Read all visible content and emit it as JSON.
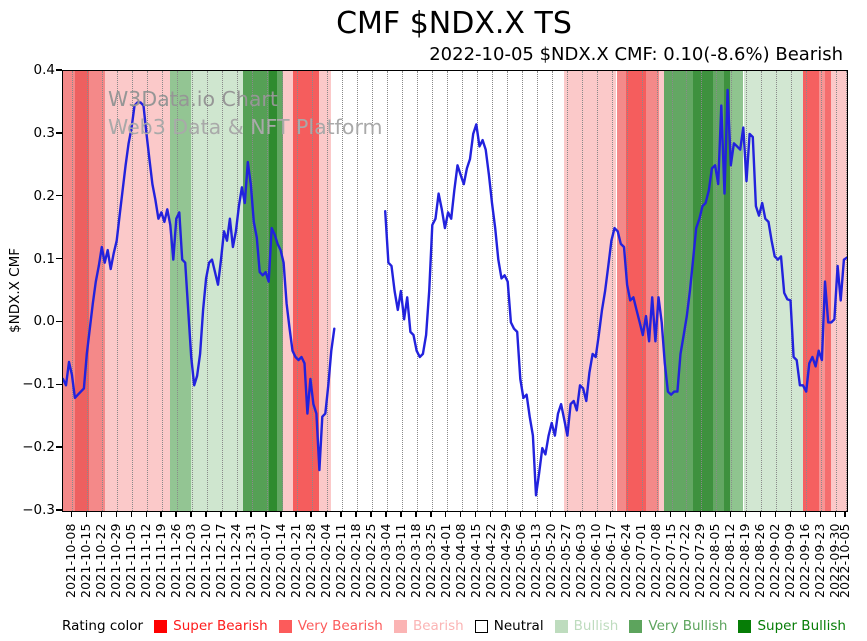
{
  "header": {
    "title": "CMF $NDX.X TS",
    "subtitle": "2022-10-05 $NDX.X CMF: 0.10(-8.6%) Bearish"
  },
  "watermark": {
    "line1": "W3Data.io Chart",
    "line2": "Web3 Data & NFT Platform"
  },
  "legend": {
    "label": "Rating color",
    "items": [
      {
        "label": "Super Bearish",
        "color": "#fe0000",
        "text_color": "#fe1a1a",
        "border": "none"
      },
      {
        "label": "Very Bearish",
        "color": "#fc5b5b",
        "text_color": "#fc5b5b",
        "border": "none"
      },
      {
        "label": "Bearish",
        "color": "#fbb4b4",
        "text_color": "#fbb4b4",
        "border": "none"
      },
      {
        "label": "Neutral",
        "color": "#ffffff",
        "text_color": "#000000",
        "border": "#000000"
      },
      {
        "label": "Bullish",
        "color": "#bedcbe",
        "text_color": "#bedcbe",
        "border": "none"
      },
      {
        "label": "Very Bullish",
        "color": "#5da45d",
        "text_color": "#5da45d",
        "border": "none"
      },
      {
        "label": "Super Bullish",
        "color": "#067d06",
        "text_color": "#067d06",
        "border": "none"
      }
    ]
  },
  "chart_data": {
    "type": "line",
    "title": "CMF $NDX.X TS",
    "ylabel": "$NDX.X CMF",
    "ylim": [
      -0.3,
      0.4
    ],
    "grid": "vertical-dotted",
    "line_color": "#2222dd",
    "yticks": [
      {
        "v": 0.4,
        "label": "0.4"
      },
      {
        "v": 0.3,
        "label": "0.3"
      },
      {
        "v": 0.2,
        "label": "0.2"
      },
      {
        "v": 0.1,
        "label": "0.1"
      },
      {
        "v": 0.0,
        "label": "0.0"
      },
      {
        "v": -0.1,
        "label": "−0.1"
      },
      {
        "v": -0.2,
        "label": "−0.2"
      },
      {
        "v": -0.3,
        "label": "−0.3"
      }
    ],
    "xticklabels": [
      "2021-10-08",
      "2021-10-15",
      "2021-10-22",
      "2021-10-29",
      "2021-11-05",
      "2021-11-12",
      "2021-11-19",
      "2021-11-26",
      "2021-12-03",
      "2021-12-10",
      "2021-12-17",
      "2021-12-24",
      "2021-12-31",
      "2022-01-07",
      "2022-01-14",
      "2022-01-21",
      "2022-01-28",
      "2022-02-04",
      "2022-02-11",
      "2022-02-18",
      "2022-02-25",
      "2022-03-04",
      "2022-03-11",
      "2022-03-18",
      "2022-03-25",
      "2022-04-01",
      "2022-04-08",
      "2022-04-15",
      "2022-04-22",
      "2022-04-29",
      "2022-05-06",
      "2022-05-13",
      "2022-05-20",
      "2022-05-27",
      "2022-06-03",
      "2022-06-10",
      "2022-06-17",
      "2022-06-24",
      "2022-07-01",
      "2022-07-08",
      "2022-07-15",
      "2022-07-22",
      "2022-07-29",
      "2022-08-05",
      "2022-08-12",
      "2022-08-19",
      "2022-08-26",
      "2022-09-02",
      "2022-09-09",
      "2022-09-16",
      "2022-09-23",
      "2022-09-30",
      "2022-10-05"
    ],
    "rating_bands": [
      {
        "start": 0.0,
        "end": 0.015,
        "color": "#f48989",
        "rating": "Very Bearish"
      },
      {
        "start": 0.015,
        "end": 0.033,
        "color": "#ee6060",
        "rating": "Very Bearish"
      },
      {
        "start": 0.033,
        "end": 0.054,
        "color": "#f48989",
        "rating": "Very Bearish"
      },
      {
        "start": 0.054,
        "end": 0.137,
        "color": "#fbc9c9",
        "rating": "Bearish"
      },
      {
        "start": 0.137,
        "end": 0.163,
        "color": "#93c593",
        "rating": "Bullish"
      },
      {
        "start": 0.163,
        "end": 0.23,
        "color": "#cfe6cf",
        "rating": "Bullish"
      },
      {
        "start": 0.23,
        "end": 0.263,
        "color": "#55a055",
        "rating": "Very Bullish"
      },
      {
        "start": 0.263,
        "end": 0.273,
        "color": "#2f8b2f",
        "rating": "Super Bullish"
      },
      {
        "start": 0.273,
        "end": 0.281,
        "color": "#63a763",
        "rating": "Very Bullish"
      },
      {
        "start": 0.281,
        "end": 0.293,
        "color": "#fbc9c9",
        "rating": "Bearish"
      },
      {
        "start": 0.293,
        "end": 0.327,
        "color": "#f55d5d",
        "rating": "Super Bearish"
      },
      {
        "start": 0.327,
        "end": 0.342,
        "color": "#fbc9c9",
        "rating": "Bearish"
      },
      {
        "start": 0.342,
        "end": 0.639,
        "color": "#ffffff",
        "rating": "Neutral"
      },
      {
        "start": 0.639,
        "end": 0.706,
        "color": "#fbc9c9",
        "rating": "Bearish"
      },
      {
        "start": 0.706,
        "end": 0.718,
        "color": "#f48989",
        "rating": "Very Bearish"
      },
      {
        "start": 0.718,
        "end": 0.744,
        "color": "#f55d5d",
        "rating": "Super Bearish"
      },
      {
        "start": 0.744,
        "end": 0.76,
        "color": "#f48989",
        "rating": "Very Bearish"
      },
      {
        "start": 0.76,
        "end": 0.767,
        "color": "#fbc9c9",
        "rating": "Bearish"
      },
      {
        "start": 0.767,
        "end": 0.804,
        "color": "#63a763",
        "rating": "Very Bullish"
      },
      {
        "start": 0.804,
        "end": 0.829,
        "color": "#3e913e",
        "rating": "Super Bullish"
      },
      {
        "start": 0.829,
        "end": 0.843,
        "color": "#63a763",
        "rating": "Very Bullish"
      },
      {
        "start": 0.843,
        "end": 0.851,
        "color": "#3e913e",
        "rating": "Super Bullish"
      },
      {
        "start": 0.851,
        "end": 0.868,
        "color": "#8fc48f",
        "rating": "Bullish"
      },
      {
        "start": 0.868,
        "end": 0.944,
        "color": "#d2e7d2",
        "rating": "Bullish"
      },
      {
        "start": 0.944,
        "end": 0.964,
        "color": "#f56060",
        "rating": "Super Bearish"
      },
      {
        "start": 0.964,
        "end": 0.972,
        "color": "#f79494",
        "rating": "Very Bearish"
      },
      {
        "start": 0.972,
        "end": 0.98,
        "color": "#f56d6d",
        "rating": "Super Bearish"
      },
      {
        "start": 0.98,
        "end": 1.0,
        "color": "#fbc9c9",
        "rating": "Bearish"
      }
    ],
    "segments": [
      {
        "x_start_frac": 0.0,
        "x_end_frac": 0.346,
        "values": [
          -0.09,
          -0.1,
          -0.063,
          -0.083,
          -0.12,
          -0.115,
          -0.11,
          -0.105,
          -0.05,
          -0.01,
          0.03,
          0.065,
          0.09,
          0.12,
          0.095,
          0.115,
          0.085,
          0.11,
          0.13,
          0.17,
          0.21,
          0.25,
          0.285,
          0.31,
          0.345,
          0.35,
          0.35,
          0.345,
          0.3,
          0.26,
          0.22,
          0.195,
          0.165,
          0.175,
          0.16,
          0.18,
          0.155,
          0.1,
          0.165,
          0.175,
          0.1,
          0.095,
          0.02,
          -0.055,
          -0.1,
          -0.085,
          -0.05,
          0.02,
          0.07,
          0.095,
          0.1,
          0.08,
          0.06,
          0.1,
          0.145,
          0.13,
          0.165,
          0.12,
          0.145,
          0.185,
          0.215,
          0.19,
          0.255,
          0.22,
          0.16,
          0.135,
          0.08,
          0.075,
          0.08,
          0.065,
          0.15,
          0.14,
          0.125,
          0.115,
          0.095,
          0.03,
          -0.01,
          -0.045,
          -0.055,
          -0.06,
          -0.055,
          -0.065,
          -0.145,
          -0.09,
          -0.13,
          -0.145,
          -0.235,
          -0.15,
          -0.145,
          -0.1,
          -0.045,
          -0.01
        ]
      },
      {
        "x_start_frac": 0.411,
        "x_end_frac": 1.0,
        "values": [
          0.177,
          0.095,
          0.09,
          0.05,
          0.02,
          0.05,
          0.005,
          0.04,
          -0.015,
          -0.02,
          -0.045,
          -0.055,
          -0.05,
          -0.02,
          0.05,
          0.155,
          0.165,
          0.205,
          0.18,
          0.15,
          0.175,
          0.165,
          0.21,
          0.25,
          0.235,
          0.22,
          0.245,
          0.26,
          0.3,
          0.315,
          0.28,
          0.29,
          0.275,
          0.235,
          0.19,
          0.15,
          0.1,
          0.07,
          0.075,
          0.065,
          0.0,
          -0.01,
          -0.015,
          -0.09,
          -0.12,
          -0.115,
          -0.15,
          -0.18,
          -0.275,
          -0.24,
          -0.2,
          -0.21,
          -0.18,
          -0.16,
          -0.18,
          -0.145,
          -0.13,
          -0.155,
          -0.18,
          -0.13,
          -0.125,
          -0.14,
          -0.1,
          -0.105,
          -0.125,
          -0.08,
          -0.05,
          -0.055,
          -0.02,
          0.02,
          0.05,
          0.09,
          0.13,
          0.15,
          0.145,
          0.125,
          0.12,
          0.06,
          0.035,
          0.04,
          0.02,
          0.0,
          -0.02,
          0.01,
          -0.03,
          0.04,
          -0.03,
          0.04,
          0.0,
          -0.065,
          -0.11,
          -0.115,
          -0.11,
          -0.11,
          -0.05,
          -0.02,
          0.01,
          0.05,
          0.1,
          0.15,
          0.165,
          0.185,
          0.19,
          0.21,
          0.245,
          0.25,
          0.22,
          0.345,
          0.205,
          0.37,
          0.25,
          0.285,
          0.28,
          0.275,
          0.31,
          0.225,
          0.3,
          0.295,
          0.185,
          0.17,
          0.19,
          0.165,
          0.16,
          0.13,
          0.105,
          0.1,
          0.105,
          0.047,
          0.037,
          0.035,
          -0.055,
          -0.06,
          -0.1,
          -0.1,
          -0.11,
          -0.065,
          -0.055,
          -0.07,
          -0.045,
          -0.06,
          0.065,
          0.0,
          0.0,
          0.005,
          0.09,
          0.035,
          0.1,
          0.103
        ]
      }
    ]
  }
}
